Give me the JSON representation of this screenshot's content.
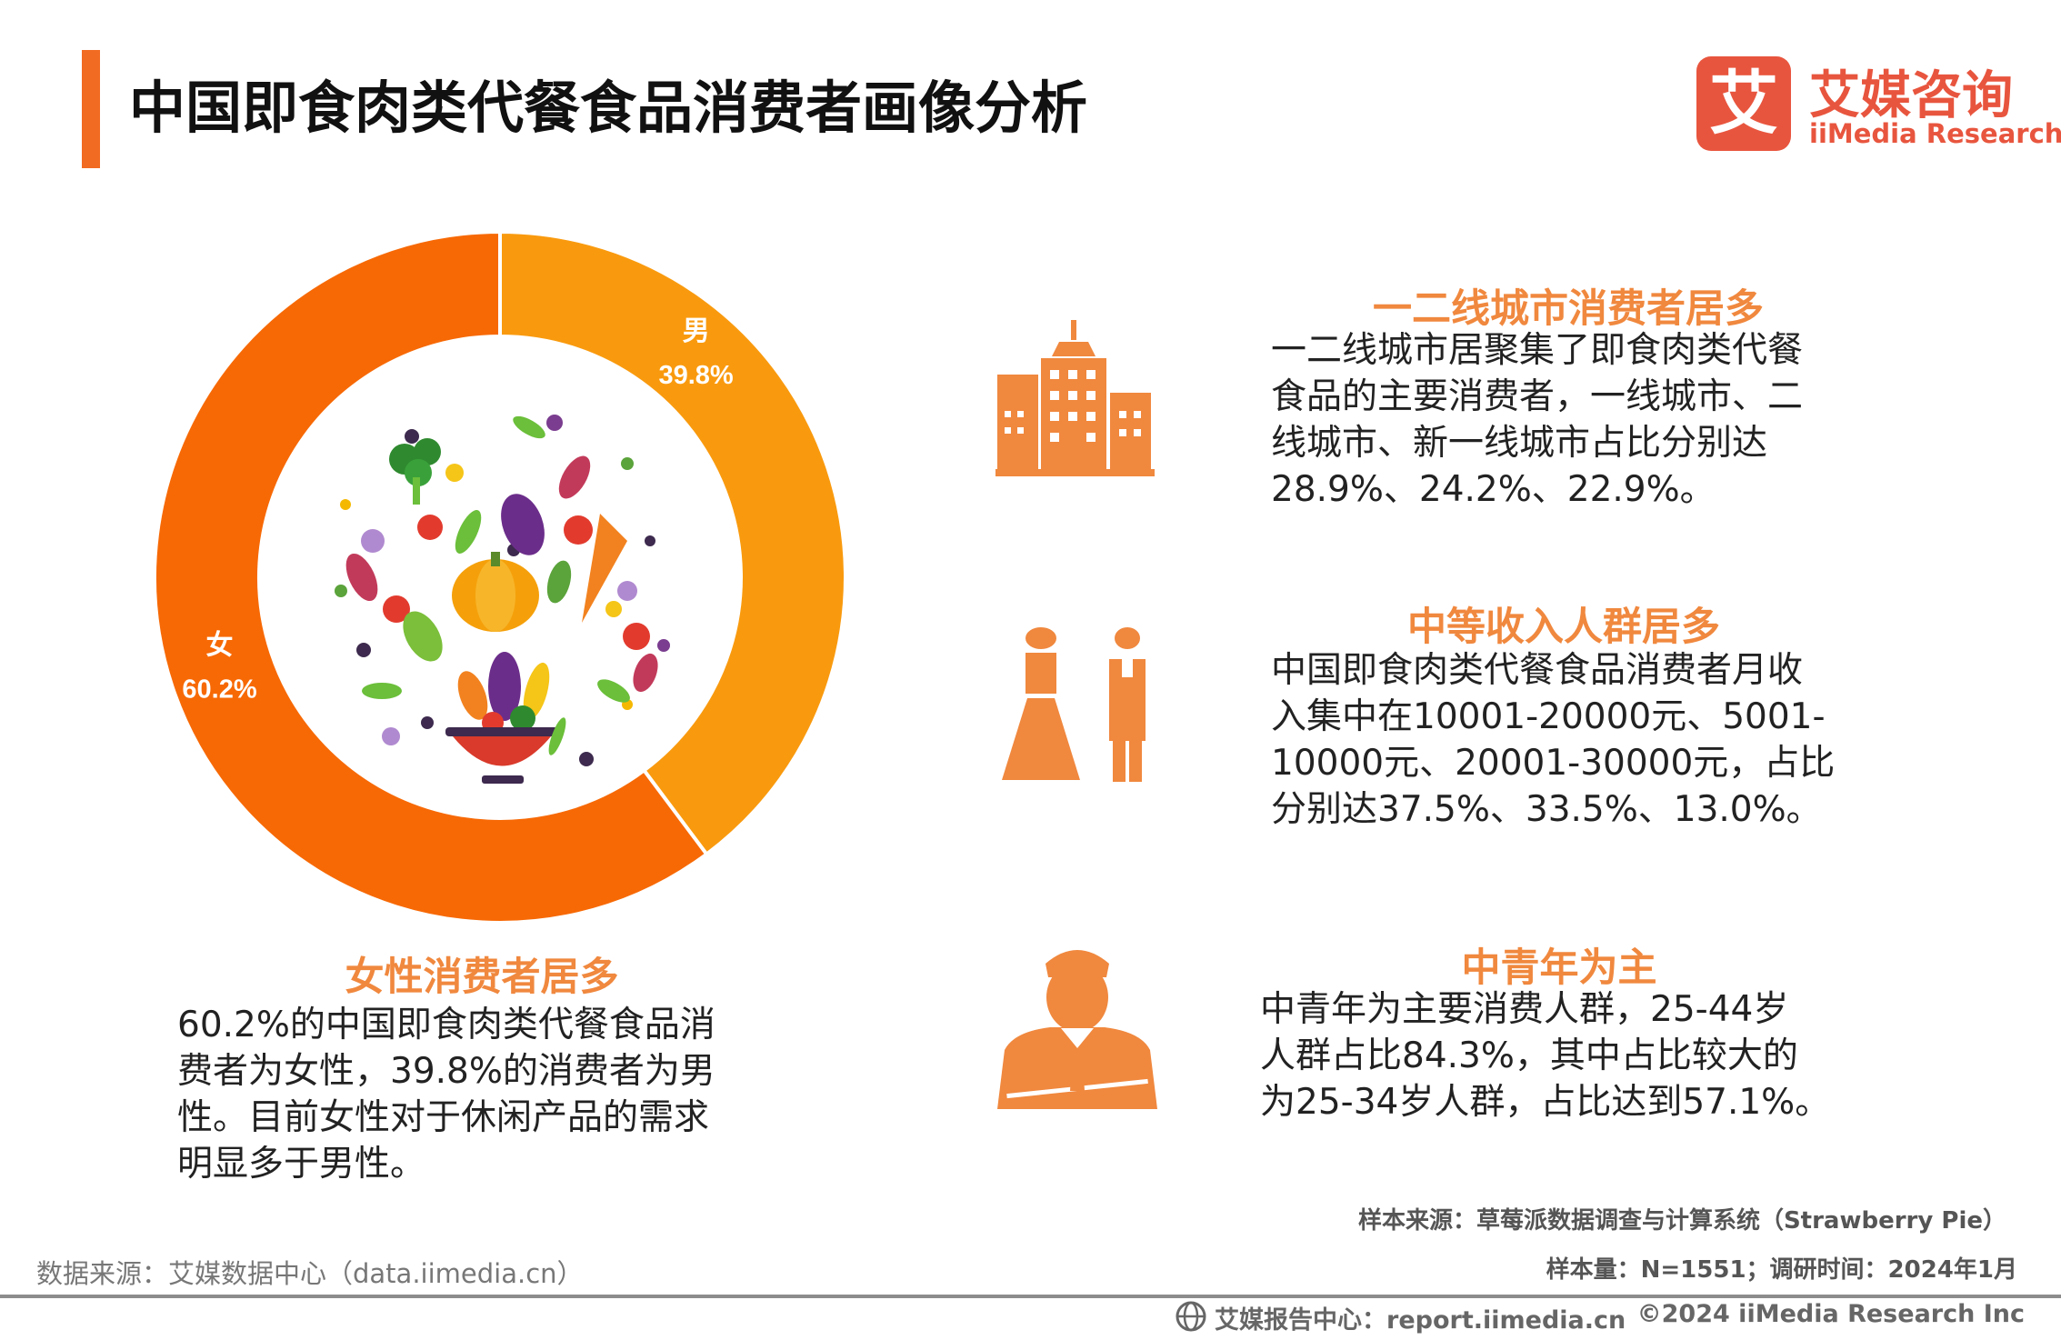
{
  "title": "中国即食肉类代餐食品消费者画像分析",
  "logo": {
    "glyph": "艾",
    "cn": "艾媒咨询",
    "en": "iiMedia Research"
  },
  "colors": {
    "accent": "#f26b22",
    "male": "#f99a0e",
    "female": "#f76905",
    "logo_red": "#e8553e",
    "icon": "#f0883e",
    "heading": "#f0883e"
  },
  "chart_data": {
    "type": "pie",
    "style": "donut",
    "series": [
      {
        "label": "男",
        "value": 39.8,
        "value_label": "39.8%"
      },
      {
        "label": "女",
        "value": 60.2,
        "value_label": "60.2%"
      }
    ],
    "center_image": "vegetables-bowl-illustration"
  },
  "left_block": {
    "heading": "女性消费者居多",
    "lines": [
      "60.2%的中国即食肉类代餐食品消",
      "费者为女性，39.8%的消费者为男",
      "性。目前女性对于休闲产品的需求",
      "明显多于男性。"
    ]
  },
  "blocks": [
    {
      "icon": "city-buildings-icon",
      "heading": "一二线城市消费者居多",
      "lines": [
        "一二线城市居聚集了即食肉类代餐",
        "食品的主要消费者，一线城市、二",
        "线城市、新一线城市占比分别达",
        "28.9%、24.2%、22.9%。"
      ]
    },
    {
      "icon": "couple-icon",
      "heading": "中等收入人群居多",
      "lines": [
        "中国即食肉类代餐食品消费者月收",
        "入集中在10001-20000元、5001-",
        "10000元、20001-30000元，占比",
        "分别达37.5%、33.5%、13.0%。"
      ]
    },
    {
      "icon": "businessman-icon",
      "heading": "中青年为主",
      "lines": [
        "中青年为主要消费人群，25-44岁",
        "人群占比84.3%，其中占比较大的",
        "为25-34岁人群，占比达到57.1%。"
      ]
    }
  ],
  "source": {
    "sample_source": "样本来源：草莓派数据调查与计算系统（Strawberry Pie）",
    "sample_size": "样本量：N=1551；调研时间：2024年1月",
    "data_source": "数据来源：艾媒数据中心（data.iimedia.cn）"
  },
  "footer": {
    "report_center": "艾媒报告中心：report.iimedia.cn",
    "copyright": "©2024  iiMedia Research  Inc"
  }
}
